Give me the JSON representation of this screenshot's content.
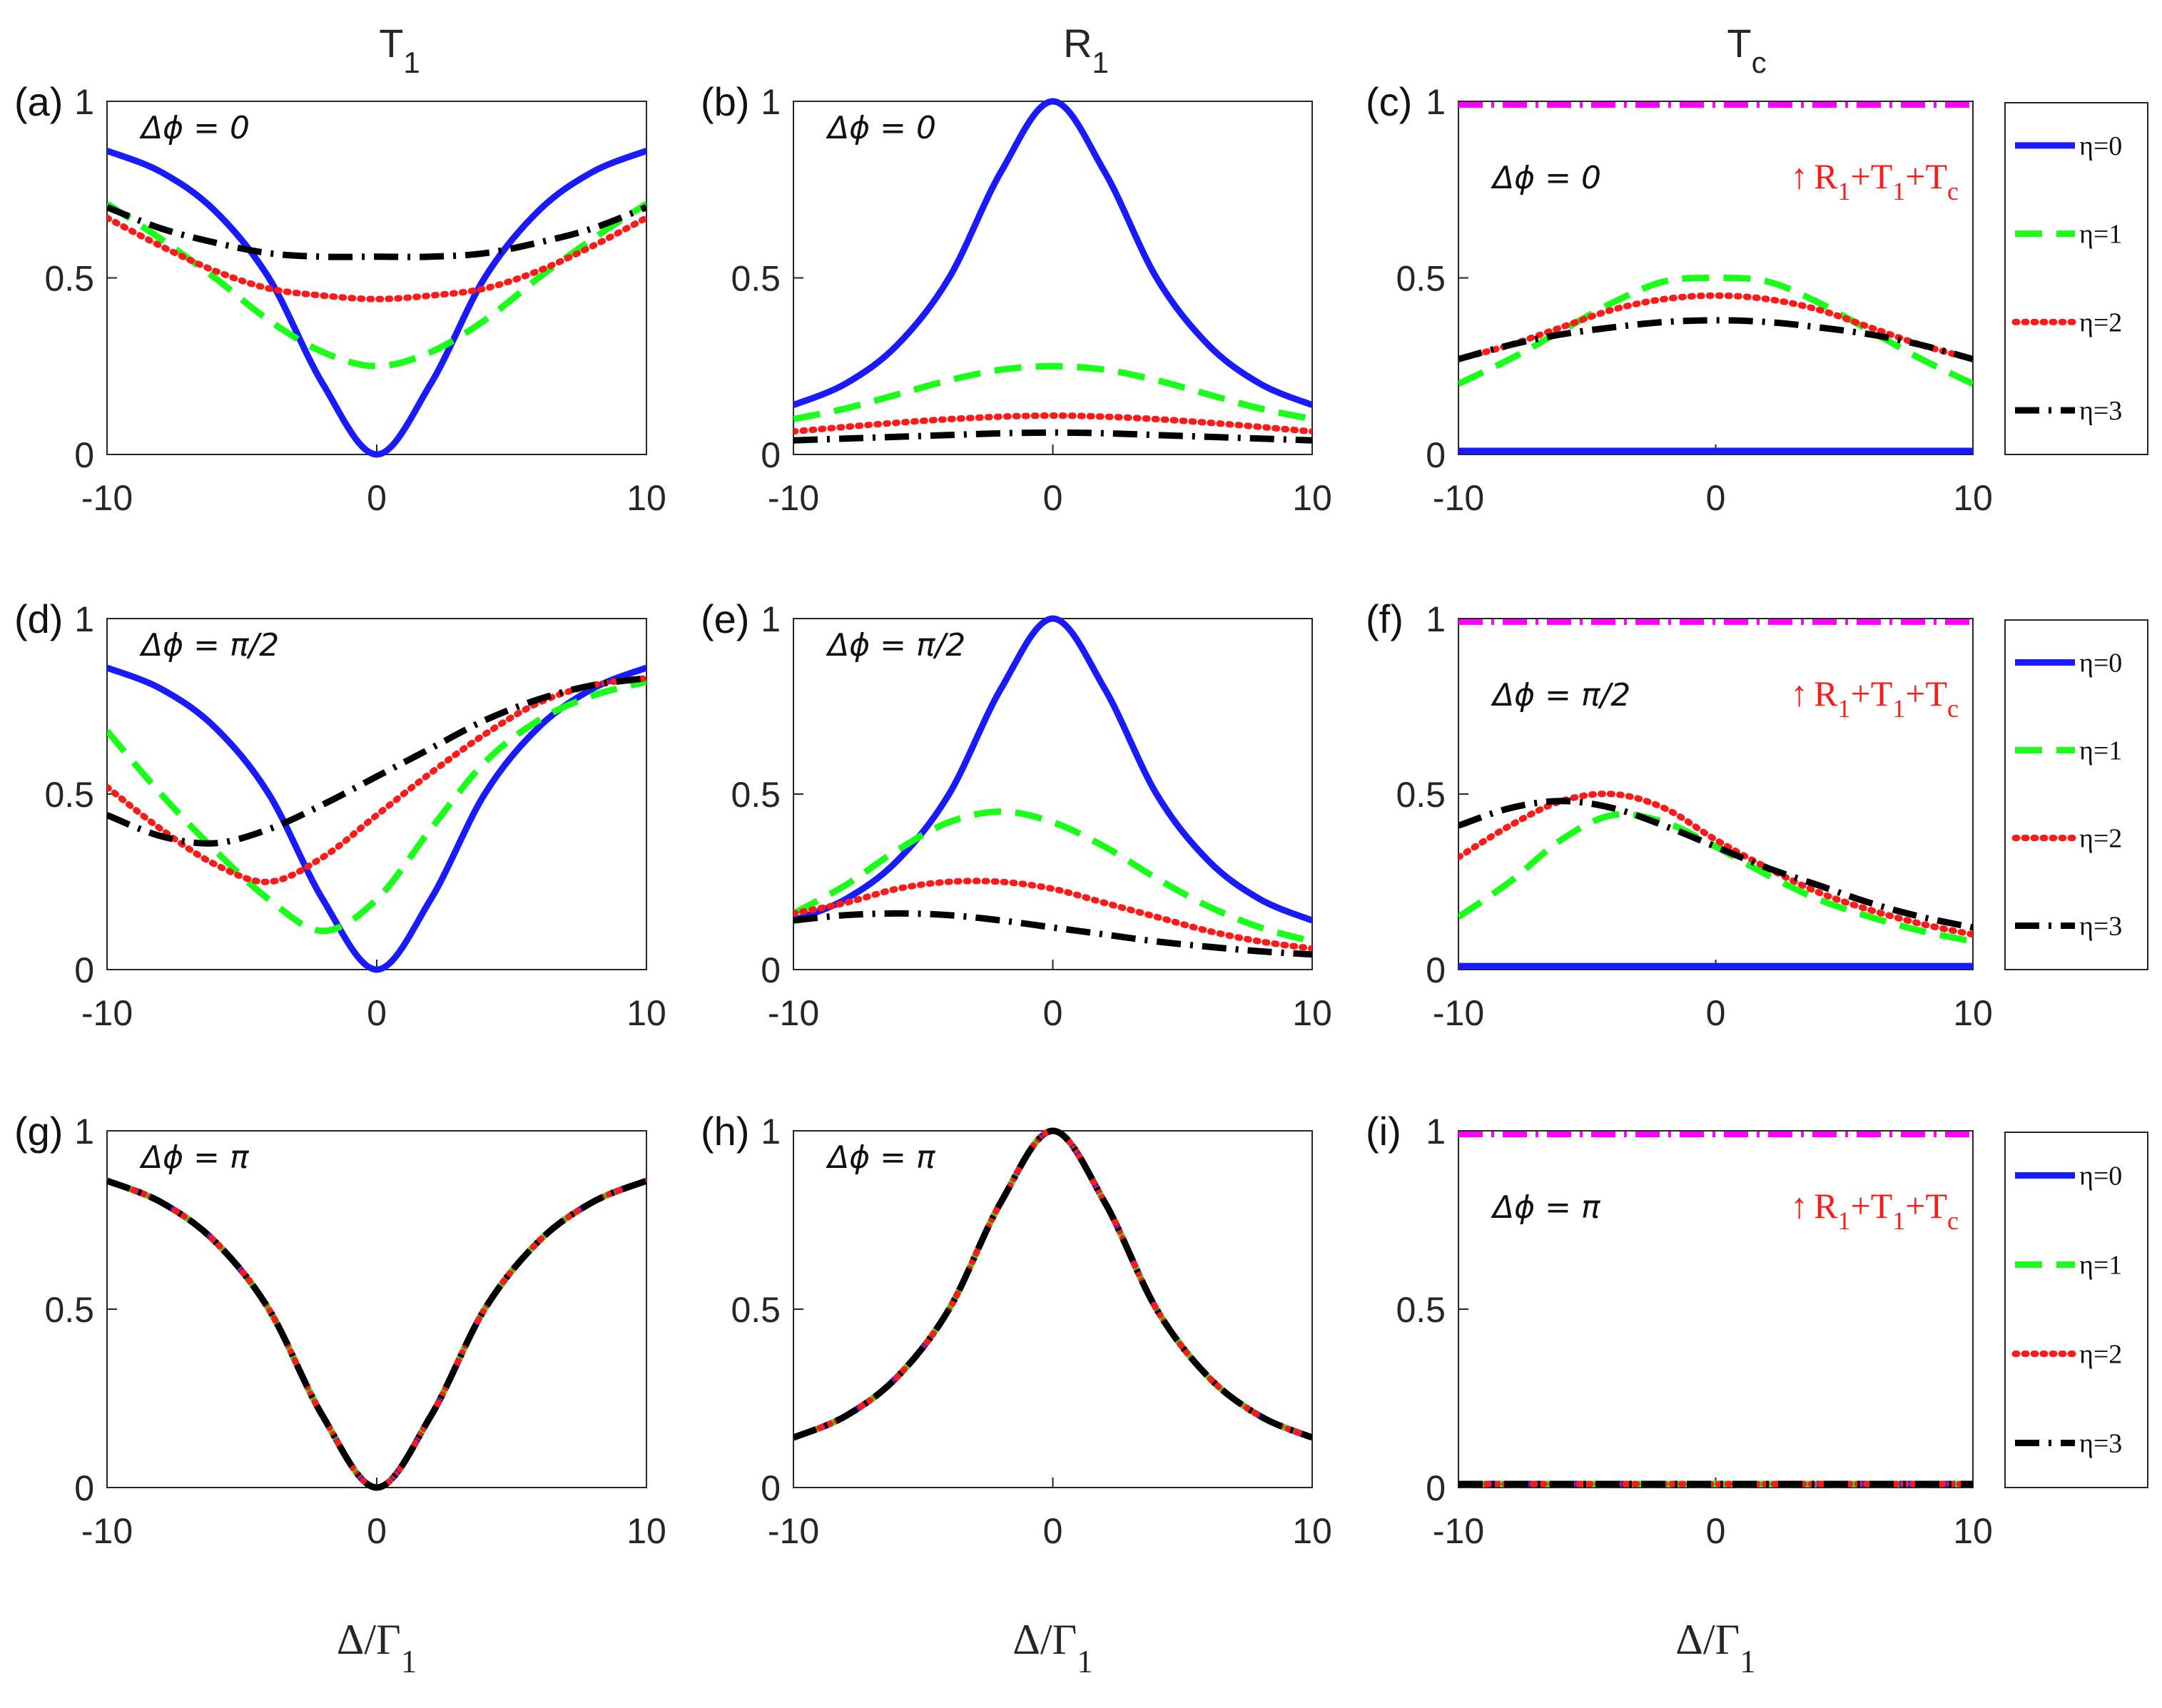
{
  "chart_data": {
    "type": "line",
    "column_titles": [
      {
        "main": "T",
        "sub": "1"
      },
      {
        "main": "R",
        "sub": "1"
      },
      {
        "main": "T",
        "sub": "c"
      }
    ],
    "xlabel": {
      "main": "Δ/Γ",
      "sub": "1"
    },
    "xlim": [
      -10,
      10
    ],
    "ylim": [
      0,
      1
    ],
    "xticks": [
      "-10",
      "0",
      "10"
    ],
    "yticks": [
      "0",
      "0.5",
      "1"
    ],
    "x": [
      -10,
      -8,
      -6,
      -4,
      -2,
      0,
      2,
      4,
      6,
      8,
      10
    ],
    "colors": {
      "eta0": "#1a1aff",
      "eta1": "#1aff1a",
      "eta2": "#ff1a1a",
      "eta3": "#000000",
      "sum": "#ff00ff"
    },
    "legend": {
      "entries": [
        "η=0",
        "η=1",
        "η=2",
        "η=3"
      ],
      "placement": "right of column 3"
    },
    "sum_label": {
      "arrow": "↑",
      "parts": [
        {
          "t": "R",
          "s": "1"
        },
        {
          "t": "+T",
          "s": "1"
        },
        {
          "t": "+T",
          "s": "c"
        }
      ]
    },
    "panels": [
      {
        "label": "(a)",
        "annotation": "Δϕ  = 0",
        "series": [
          {
            "name": "η=0",
            "values": [
              0.86,
              0.8,
              0.69,
              0.5,
              0.2,
              0.0,
              0.2,
              0.5,
              0.69,
              0.8,
              0.86
            ]
          },
          {
            "name": "η=1",
            "values": [
              0.71,
              0.61,
              0.5,
              0.38,
              0.29,
              0.25,
              0.29,
              0.38,
              0.5,
              0.61,
              0.71
            ]
          },
          {
            "name": "η=2",
            "values": [
              0.67,
              0.59,
              0.52,
              0.47,
              0.45,
              0.44,
              0.45,
              0.47,
              0.52,
              0.59,
              0.67
            ]
          },
          {
            "name": "η=3",
            "values": [
              0.7,
              0.64,
              0.6,
              0.57,
              0.56,
              0.56,
              0.56,
              0.57,
              0.6,
              0.64,
              0.7
            ]
          }
        ]
      },
      {
        "label": "(b)",
        "annotation": "Δϕ  = 0",
        "series": [
          {
            "name": "η=0",
            "values": [
              0.14,
              0.2,
              0.31,
              0.5,
              0.8,
              1.0,
              0.8,
              0.5,
              0.31,
              0.2,
              0.14
            ]
          },
          {
            "name": "η=1",
            "values": [
              0.1,
              0.13,
              0.17,
              0.21,
              0.24,
              0.25,
              0.24,
              0.21,
              0.17,
              0.13,
              0.1
            ]
          },
          {
            "name": "η=2",
            "values": [
              0.065,
              0.078,
              0.09,
              0.1,
              0.107,
              0.11,
              0.107,
              0.1,
              0.09,
              0.078,
              0.065
            ]
          },
          {
            "name": "η=3",
            "values": [
              0.04,
              0.045,
              0.05,
              0.055,
              0.06,
              0.062,
              0.06,
              0.055,
              0.05,
              0.045,
              0.04
            ]
          }
        ]
      },
      {
        "label": "(c)",
        "annotation": "Δϕ  = 0",
        "has_sum": true,
        "sum_value": 0.99,
        "series": [
          {
            "name": "η=0",
            "values": [
              0.01,
              0.01,
              0.01,
              0.01,
              0.01,
              0.01,
              0.01,
              0.01,
              0.01,
              0.01,
              0.01
            ]
          },
          {
            "name": "η=1",
            "values": [
              0.2,
              0.27,
              0.35,
              0.43,
              0.49,
              0.5,
              0.49,
              0.43,
              0.35,
              0.27,
              0.2
            ]
          },
          {
            "name": "η=2",
            "values": [
              0.27,
              0.31,
              0.36,
              0.41,
              0.44,
              0.45,
              0.44,
              0.41,
              0.36,
              0.31,
              0.27
            ]
          },
          {
            "name": "η=3",
            "values": [
              0.27,
              0.31,
              0.34,
              0.36,
              0.375,
              0.38,
              0.375,
              0.36,
              0.34,
              0.31,
              0.27
            ]
          }
        ]
      },
      {
        "label": "(d)",
        "annotation": "Δϕ  = π/2",
        "series": [
          {
            "name": "η=0",
            "values": [
              0.86,
              0.8,
              0.69,
              0.5,
              0.2,
              0.0,
              0.2,
              0.5,
              0.69,
              0.8,
              0.86
            ]
          },
          {
            "name": "η=1",
            "values": [
              0.68,
              0.5,
              0.34,
              0.2,
              0.11,
              0.2,
              0.4,
              0.59,
              0.71,
              0.78,
              0.82
            ]
          },
          {
            "name": "η=2",
            "values": [
              0.52,
              0.4,
              0.3,
              0.25,
              0.32,
              0.44,
              0.56,
              0.67,
              0.76,
              0.81,
              0.83
            ]
          },
          {
            "name": "η=3",
            "values": [
              0.44,
              0.38,
              0.36,
              0.4,
              0.47,
              0.55,
              0.63,
              0.71,
              0.77,
              0.81,
              0.83
            ]
          }
        ]
      },
      {
        "label": "(e)",
        "annotation": "Δϕ  = π/2",
        "series": [
          {
            "name": "η=0",
            "values": [
              0.14,
              0.2,
              0.31,
              0.5,
              0.8,
              1.0,
              0.8,
              0.5,
              0.31,
              0.2,
              0.14
            ]
          },
          {
            "name": "η=1",
            "values": [
              0.16,
              0.24,
              0.34,
              0.42,
              0.45,
              0.42,
              0.35,
              0.26,
              0.18,
              0.12,
              0.08
            ]
          },
          {
            "name": "η=2",
            "values": [
              0.16,
              0.19,
              0.23,
              0.25,
              0.25,
              0.23,
              0.19,
              0.15,
              0.11,
              0.08,
              0.06
            ]
          },
          {
            "name": "η=3",
            "values": [
              0.14,
              0.155,
              0.16,
              0.155,
              0.14,
              0.12,
              0.1,
              0.08,
              0.065,
              0.052,
              0.043
            ]
          }
        ]
      },
      {
        "label": "(f)",
        "annotation": "Δϕ  = π/2",
        "has_sum": true,
        "sum_value": 0.99,
        "series": [
          {
            "name": "η=0",
            "values": [
              0.01,
              0.01,
              0.01,
              0.01,
              0.01,
              0.01,
              0.01,
              0.01,
              0.01,
              0.01,
              0.01
            ]
          },
          {
            "name": "η=1",
            "values": [
              0.15,
              0.25,
              0.37,
              0.44,
              0.42,
              0.35,
              0.27,
              0.2,
              0.15,
              0.11,
              0.08
            ]
          },
          {
            "name": "η=2",
            "values": [
              0.32,
              0.41,
              0.48,
              0.5,
              0.46,
              0.37,
              0.29,
              0.22,
              0.17,
              0.13,
              0.1
            ]
          },
          {
            "name": "η=3",
            "values": [
              0.41,
              0.46,
              0.48,
              0.46,
              0.41,
              0.35,
              0.29,
              0.24,
              0.19,
              0.15,
              0.12
            ]
          }
        ]
      },
      {
        "label": "(g)",
        "annotation": "Δϕ  = π",
        "series": [
          {
            "name": "η=0",
            "values": [
              0.86,
              0.8,
              0.69,
              0.5,
              0.2,
              0.0,
              0.2,
              0.5,
              0.69,
              0.8,
              0.86
            ]
          },
          {
            "name": "η=1",
            "values": [
              0.86,
              0.8,
              0.69,
              0.5,
              0.2,
              0.0,
              0.2,
              0.5,
              0.69,
              0.8,
              0.86
            ]
          },
          {
            "name": "η=2",
            "values": [
              0.86,
              0.8,
              0.69,
              0.5,
              0.2,
              0.0,
              0.2,
              0.5,
              0.69,
              0.8,
              0.86
            ]
          },
          {
            "name": "η=3",
            "values": [
              0.86,
              0.8,
              0.69,
              0.5,
              0.2,
              0.0,
              0.2,
              0.5,
              0.69,
              0.8,
              0.86
            ]
          }
        ]
      },
      {
        "label": "(h)",
        "annotation": "Δϕ  = π",
        "series": [
          {
            "name": "η=0",
            "values": [
              0.14,
              0.2,
              0.31,
              0.5,
              0.8,
              1.0,
              0.8,
              0.5,
              0.31,
              0.2,
              0.14
            ]
          },
          {
            "name": "η=1",
            "values": [
              0.14,
              0.2,
              0.31,
              0.5,
              0.8,
              1.0,
              0.8,
              0.5,
              0.31,
              0.2,
              0.14
            ]
          },
          {
            "name": "η=2",
            "values": [
              0.14,
              0.2,
              0.31,
              0.5,
              0.8,
              1.0,
              0.8,
              0.5,
              0.31,
              0.2,
              0.14
            ]
          },
          {
            "name": "η=3",
            "values": [
              0.14,
              0.2,
              0.31,
              0.5,
              0.8,
              1.0,
              0.8,
              0.5,
              0.31,
              0.2,
              0.14
            ]
          }
        ]
      },
      {
        "label": "(i)",
        "annotation": "Δϕ  = π",
        "has_sum": true,
        "sum_value": 0.99,
        "series": [
          {
            "name": "η=0",
            "values": [
              0.01,
              0.01,
              0.01,
              0.01,
              0.01,
              0.01,
              0.01,
              0.01,
              0.01,
              0.01,
              0.01
            ]
          },
          {
            "name": "η=1",
            "values": [
              0.01,
              0.01,
              0.01,
              0.01,
              0.01,
              0.01,
              0.01,
              0.01,
              0.01,
              0.01,
              0.01
            ]
          },
          {
            "name": "η=2",
            "values": [
              0.01,
              0.01,
              0.01,
              0.01,
              0.01,
              0.01,
              0.01,
              0.01,
              0.01,
              0.01,
              0.01
            ]
          },
          {
            "name": "η=3",
            "values": [
              0.01,
              0.01,
              0.01,
              0.01,
              0.01,
              0.01,
              0.01,
              0.01,
              0.01,
              0.01,
              0.01
            ]
          }
        ]
      }
    ]
  }
}
